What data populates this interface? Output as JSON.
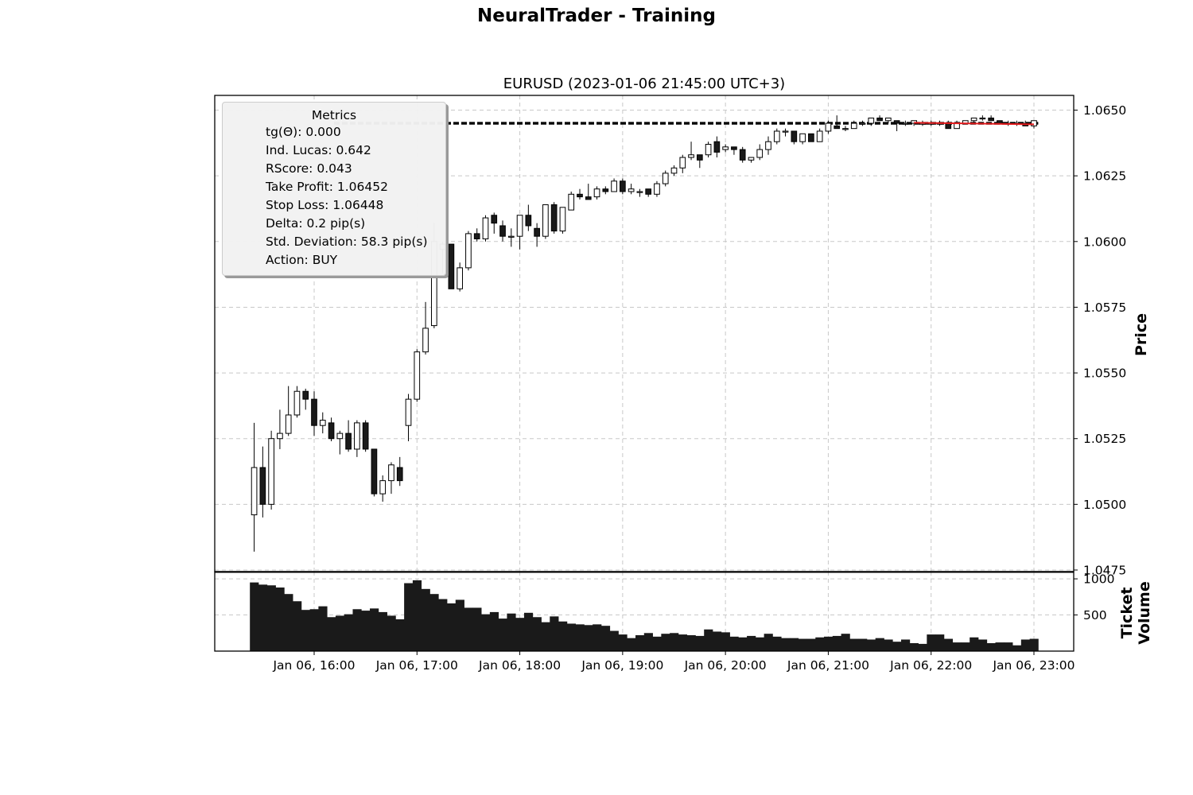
{
  "figure": {
    "title": "NeuralTrader - Training"
  },
  "chart_data": [
    {
      "type": "candlestick",
      "title": "EURUSD (2023-01-06 21:45:00 UTC+3)",
      "ylabel": "Price",
      "ylim": [
        1.0475,
        1.0655
      ],
      "yticks": [
        "1.0475",
        "1.0500",
        "1.0525",
        "1.0550",
        "1.0575",
        "1.0600",
        "1.0625",
        "1.0650"
      ],
      "xticks": [
        "Jan 06, 16:00",
        "Jan 06, 17:00",
        "Jan 06, 18:00",
        "Jan 06, 19:00",
        "Jan 06, 20:00",
        "Jan 06, 21:00",
        "Jan 06, 22:00",
        "Jan 06, 23:00"
      ],
      "xtick_minutes": [
        960,
        1020,
        1080,
        1140,
        1200,
        1260,
        1320,
        1380
      ],
      "bar_minutes": 5,
      "first_bar_minute": 925,
      "grid": true,
      "candles": [
        {
          "o": 1.0496,
          "h": 1.0531,
          "l": 1.0482,
          "c": 1.0514
        },
        {
          "o": 1.0514,
          "h": 1.0522,
          "l": 1.0495,
          "c": 1.05
        },
        {
          "o": 1.05,
          "h": 1.0528,
          "l": 1.0498,
          "c": 1.0525
        },
        {
          "o": 1.0525,
          "h": 1.0536,
          "l": 1.0521,
          "c": 1.0527
        },
        {
          "o": 1.0527,
          "h": 1.0545,
          "l": 1.0526,
          "c": 1.0534
        },
        {
          "o": 1.0534,
          "h": 1.0545,
          "l": 1.0533,
          "c": 1.0543
        },
        {
          "o": 1.0543,
          "h": 1.0544,
          "l": 1.0536,
          "c": 1.054
        },
        {
          "o": 1.054,
          "h": 1.0543,
          "l": 1.0526,
          "c": 1.053
        },
        {
          "o": 1.053,
          "h": 1.0535,
          "l": 1.0527,
          "c": 1.0532
        },
        {
          "o": 1.0531,
          "h": 1.0533,
          "l": 1.0524,
          "c": 1.0525
        },
        {
          "o": 1.0525,
          "h": 1.0528,
          "l": 1.0519,
          "c": 1.0527
        },
        {
          "o": 1.0527,
          "h": 1.0532,
          "l": 1.052,
          "c": 1.0521
        },
        {
          "o": 1.0521,
          "h": 1.0532,
          "l": 1.0518,
          "c": 1.0531
        },
        {
          "o": 1.0531,
          "h": 1.0532,
          "l": 1.052,
          "c": 1.0521
        },
        {
          "o": 1.0521,
          "h": 1.0521,
          "l": 1.0503,
          "c": 1.0504
        },
        {
          "o": 1.0504,
          "h": 1.0511,
          "l": 1.0501,
          "c": 1.0509
        },
        {
          "o": 1.0509,
          "h": 1.0516,
          "l": 1.0504,
          "c": 1.0515
        },
        {
          "o": 1.0514,
          "h": 1.0518,
          "l": 1.0507,
          "c": 1.0509
        },
        {
          "o": 1.053,
          "h": 1.0542,
          "l": 1.0524,
          "c": 1.054
        },
        {
          "o": 1.054,
          "h": 1.0559,
          "l": 1.0539,
          "c": 1.0558
        },
        {
          "o": 1.0558,
          "h": 1.0577,
          "l": 1.0557,
          "c": 1.0567
        },
        {
          "o": 1.0568,
          "h": 1.0607,
          "l": 1.0567,
          "c": 1.06
        },
        {
          "o": 1.0597,
          "h": 1.06,
          "l": 1.0588,
          "c": 1.0599
        },
        {
          "o": 1.0599,
          "h": 1.0599,
          "l": 1.0582,
          "c": 1.0582
        },
        {
          "o": 1.0582,
          "h": 1.0592,
          "l": 1.0581,
          "c": 1.059
        },
        {
          "o": 1.059,
          "h": 1.0604,
          "l": 1.0589,
          "c": 1.0603
        },
        {
          "o": 1.0603,
          "h": 1.0605,
          "l": 1.06,
          "c": 1.0601
        },
        {
          "o": 1.0601,
          "h": 1.061,
          "l": 1.06,
          "c": 1.0609
        },
        {
          "o": 1.061,
          "h": 1.0611,
          "l": 1.0603,
          "c": 1.0607
        },
        {
          "o": 1.0606,
          "h": 1.0608,
          "l": 1.06,
          "c": 1.0602
        },
        {
          "o": 1.0602,
          "h": 1.0605,
          "l": 1.0598,
          "c": 1.0602
        },
        {
          "o": 1.0602,
          "h": 1.061,
          "l": 1.0597,
          "c": 1.061
        },
        {
          "o": 1.061,
          "h": 1.0614,
          "l": 1.0604,
          "c": 1.0606
        },
        {
          "o": 1.0605,
          "h": 1.0607,
          "l": 1.0598,
          "c": 1.0602
        },
        {
          "o": 1.0602,
          "h": 1.0614,
          "l": 1.0601,
          "c": 1.0614
        },
        {
          "o": 1.0614,
          "h": 1.0615,
          "l": 1.0603,
          "c": 1.0604
        },
        {
          "o": 1.0604,
          "h": 1.0613,
          "l": 1.0603,
          "c": 1.0613
        },
        {
          "o": 1.0612,
          "h": 1.0619,
          "l": 1.0612,
          "c": 1.0618
        },
        {
          "o": 1.0618,
          "h": 1.062,
          "l": 1.0616,
          "c": 1.0617
        },
        {
          "o": 1.0617,
          "h": 1.0622,
          "l": 1.0616,
          "c": 1.0616
        },
        {
          "o": 1.0617,
          "h": 1.0621,
          "l": 1.0616,
          "c": 1.062
        },
        {
          "o": 1.062,
          "h": 1.0621,
          "l": 1.0618,
          "c": 1.0619
        },
        {
          "o": 1.0619,
          "h": 1.0624,
          "l": 1.0619,
          "c": 1.0623
        },
        {
          "o": 1.0623,
          "h": 1.0624,
          "l": 1.0618,
          "c": 1.0619
        },
        {
          "o": 1.0619,
          "h": 1.0622,
          "l": 1.0618,
          "c": 1.062
        },
        {
          "o": 1.0619,
          "h": 1.062,
          "l": 1.0617,
          "c": 1.0619
        },
        {
          "o": 1.062,
          "h": 1.062,
          "l": 1.0617,
          "c": 1.0618
        },
        {
          "o": 1.0618,
          "h": 1.0623,
          "l": 1.0617,
          "c": 1.0622
        },
        {
          "o": 1.0622,
          "h": 1.0627,
          "l": 1.0621,
          "c": 1.0626
        },
        {
          "o": 1.0626,
          "h": 1.0629,
          "l": 1.0625,
          "c": 1.0628
        },
        {
          "o": 1.0628,
          "h": 1.0633,
          "l": 1.0626,
          "c": 1.0632
        },
        {
          "o": 1.0632,
          "h": 1.0638,
          "l": 1.0631,
          "c": 1.0633
        },
        {
          "o": 1.0633,
          "h": 1.0633,
          "l": 1.0628,
          "c": 1.0631
        },
        {
          "o": 1.0633,
          "h": 1.0638,
          "l": 1.0632,
          "c": 1.0637
        },
        {
          "o": 1.0638,
          "h": 1.064,
          "l": 1.0632,
          "c": 1.0634
        },
        {
          "o": 1.0635,
          "h": 1.0637,
          "l": 1.0634,
          "c": 1.0636
        },
        {
          "o": 1.0636,
          "h": 1.0636,
          "l": 1.0633,
          "c": 1.0635
        },
        {
          "o": 1.0635,
          "h": 1.0636,
          "l": 1.063,
          "c": 1.0631
        },
        {
          "o": 1.0631,
          "h": 1.0632,
          "l": 1.063,
          "c": 1.0632
        },
        {
          "o": 1.0632,
          "h": 1.0637,
          "l": 1.0631,
          "c": 1.0635
        },
        {
          "o": 1.0635,
          "h": 1.064,
          "l": 1.0633,
          "c": 1.0638
        },
        {
          "o": 1.0638,
          "h": 1.0643,
          "l": 1.0637,
          "c": 1.0642
        },
        {
          "o": 1.0642,
          "h": 1.0643,
          "l": 1.064,
          "c": 1.0642
        },
        {
          "o": 1.0642,
          "h": 1.0642,
          "l": 1.0637,
          "c": 1.0638
        },
        {
          "o": 1.0638,
          "h": 1.0641,
          "l": 1.0637,
          "c": 1.0641
        },
        {
          "o": 1.0641,
          "h": 1.0641,
          "l": 1.0638,
          "c": 1.0638
        },
        {
          "o": 1.0638,
          "h": 1.0643,
          "l": 1.0638,
          "c": 1.0642
        },
        {
          "o": 1.0642,
          "h": 1.0646,
          "l": 1.0641,
          "c": 1.0645
        },
        {
          "o": 1.0644,
          "h": 1.0648,
          "l": 1.0643,
          "c": 1.0643
        },
        {
          "o": 1.0643,
          "h": 1.0644,
          "l": 1.0642,
          "c": 1.0643
        },
        {
          "o": 1.0643,
          "h": 1.0646,
          "l": 1.0643,
          "c": 1.0645
        },
        {
          "o": 1.0645,
          "h": 1.0646,
          "l": 1.0644,
          "c": 1.0645
        },
        {
          "o": 1.0645,
          "h": 1.0647,
          "l": 1.0644,
          "c": 1.0647
        },
        {
          "o": 1.0647,
          "h": 1.0648,
          "l": 1.0646,
          "c": 1.0646
        },
        {
          "o": 1.0646,
          "h": 1.0647,
          "l": 1.0645,
          "c": 1.0647
        },
        {
          "o": 1.0646,
          "h": 1.0646,
          "l": 1.0642,
          "c": 1.0645
        },
        {
          "o": 1.0645,
          "h": 1.0646,
          "l": 1.0644,
          "c": 1.0645
        },
        {
          "o": 1.0645,
          "h": 1.0646,
          "l": 1.0644,
          "c": 1.0646
        },
        {
          "o": 1.0645,
          "h": 1.0646,
          "l": 1.0644,
          "c": 1.0645
        },
        {
          "o": 1.0645,
          "h": 1.0646,
          "l": 1.0644,
          "c": 1.0645
        },
        {
          "o": 1.0645,
          "h": 1.0646,
          "l": 1.0644,
          "c": 1.0645
        },
        {
          "o": 1.0645,
          "h": 1.0646,
          "l": 1.0643,
          "c": 1.0643
        },
        {
          "o": 1.0643,
          "h": 1.0646,
          "l": 1.0643,
          "c": 1.0645
        },
        {
          "o": 1.0645,
          "h": 1.0646,
          "l": 1.0645,
          "c": 1.0646
        },
        {
          "o": 1.0646,
          "h": 1.0647,
          "l": 1.0645,
          "c": 1.0647
        },
        {
          "o": 1.0647,
          "h": 1.0648,
          "l": 1.0646,
          "c": 1.0647
        },
        {
          "o": 1.0647,
          "h": 1.0648,
          "l": 1.0646,
          "c": 1.0646
        },
        {
          "o": 1.0646,
          "h": 1.0646,
          "l": 1.0645,
          "c": 1.0645
        },
        {
          "o": 1.0645,
          "h": 1.0646,
          "l": 1.0644,
          "c": 1.0645
        },
        {
          "o": 1.0645,
          "h": 1.0646,
          "l": 1.0644,
          "c": 1.0645
        },
        {
          "o": 1.0645,
          "h": 1.0646,
          "l": 1.0644,
          "c": 1.0644
        },
        {
          "o": 1.0644,
          "h": 1.0646,
          "l": 1.0643,
          "c": 1.0646
        }
      ],
      "take_profit": 1.06452,
      "stop_loss": 1.06448,
      "trend_line": {
        "color": "#e41a1c",
        "from_bar": 77,
        "to_bar": 91,
        "start_price": 1.06452,
        "end_price": 1.06446
      },
      "legend": {
        "title": "Metrics",
        "position": "upper-left",
        "entries": [
          {
            "label": "tg(Θ): 0.000",
            "style": "solid",
            "color": "#e41a1c"
          },
          {
            "label": "Ind. Lucas: 0.642",
            "style": "dotted-thin",
            "color": "#bbbbbb"
          },
          {
            "label": "RScore: 0.043",
            "style": "dashed-thin",
            "color": "#777777"
          },
          {
            "label": "Take Profit: 1.06452",
            "style": "dashed-bold",
            "color": "#000000"
          },
          {
            "label": "Stop Loss: 1.06448",
            "style": "dashed-bold",
            "color": "#000000"
          },
          {
            "label": "Delta: 0.2 pip(s)",
            "style": "dotted-thin",
            "color": "#bbbbbb"
          },
          {
            "label": "Std. Deviation: 58.3 pip(s)",
            "style": "dotted-thin",
            "color": "#bbbbbb"
          },
          {
            "label": "Action: BUY",
            "style": "dotted-thin",
            "color": "#bbbbbb"
          }
        ]
      }
    },
    {
      "type": "bar",
      "ylabel": "Ticket\nVolume",
      "ylabel_lines": [
        "Ticket",
        "Volume"
      ],
      "ylim": [
        0,
        1100
      ],
      "yticks": [
        "500",
        "1000"
      ],
      "ytick_values": [
        500,
        1000
      ],
      "grid": true,
      "values": [
        950,
        920,
        910,
        880,
        790,
        690,
        570,
        580,
        620,
        470,
        490,
        510,
        580,
        560,
        590,
        540,
        490,
        440,
        940,
        980,
        860,
        790,
        720,
        660,
        710,
        600,
        600,
        510,
        540,
        450,
        520,
        460,
        530,
        470,
        400,
        480,
        410,
        380,
        370,
        360,
        370,
        350,
        280,
        230,
        180,
        220,
        250,
        200,
        240,
        250,
        230,
        220,
        210,
        300,
        270,
        260,
        200,
        190,
        210,
        190,
        240,
        200,
        180,
        180,
        170,
        170,
        190,
        200,
        210,
        240,
        170,
        170,
        160,
        180,
        160,
        130,
        160,
        110,
        100,
        230,
        230,
        170,
        120,
        120,
        190,
        160,
        110,
        120,
        120,
        80,
        160,
        170
      ]
    }
  ]
}
